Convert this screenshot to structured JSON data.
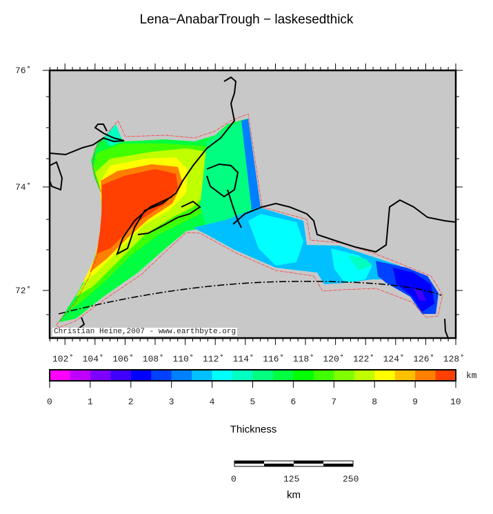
{
  "title": "Lena−AnabarTrough − laskesedthick",
  "map": {
    "lat_labels": [
      "76˚",
      "74˚",
      "72˚"
    ],
    "lon_labels": [
      "102˚",
      "104˚",
      "106˚",
      "108˚",
      "110˚",
      "112˚",
      "114˚",
      "116˚",
      "118˚",
      "120˚",
      "122˚",
      "124˚",
      "126˚",
      "128˚"
    ],
    "credit": "Christian Heine,2007 - www.earthbyte.org",
    "land_color": "#c8c8c8",
    "outline_color": "#ff0000"
  },
  "colorbar": {
    "label": "Thickness",
    "unit": "km",
    "range": [
      0,
      10
    ],
    "tick_labels": [
      "0",
      "1",
      "2",
      "3",
      "4",
      "5",
      "6",
      "7",
      "8",
      "9",
      "10"
    ],
    "colors": [
      "#ff00ff",
      "#c000ff",
      "#8000ff",
      "#4000ff",
      "#0000ff",
      "#0040ff",
      "#0080ff",
      "#00c0ff",
      "#00ffff",
      "#00ffc0",
      "#00ff80",
      "#00ff40",
      "#00ff00",
      "#40ff00",
      "#80ff00",
      "#c0ff00",
      "#ffff00",
      "#ffc000",
      "#ff8000",
      "#ff4000"
    ]
  },
  "scalebar": {
    "tick_labels": [
      "0",
      "125",
      "250"
    ],
    "unit": "km"
  }
}
